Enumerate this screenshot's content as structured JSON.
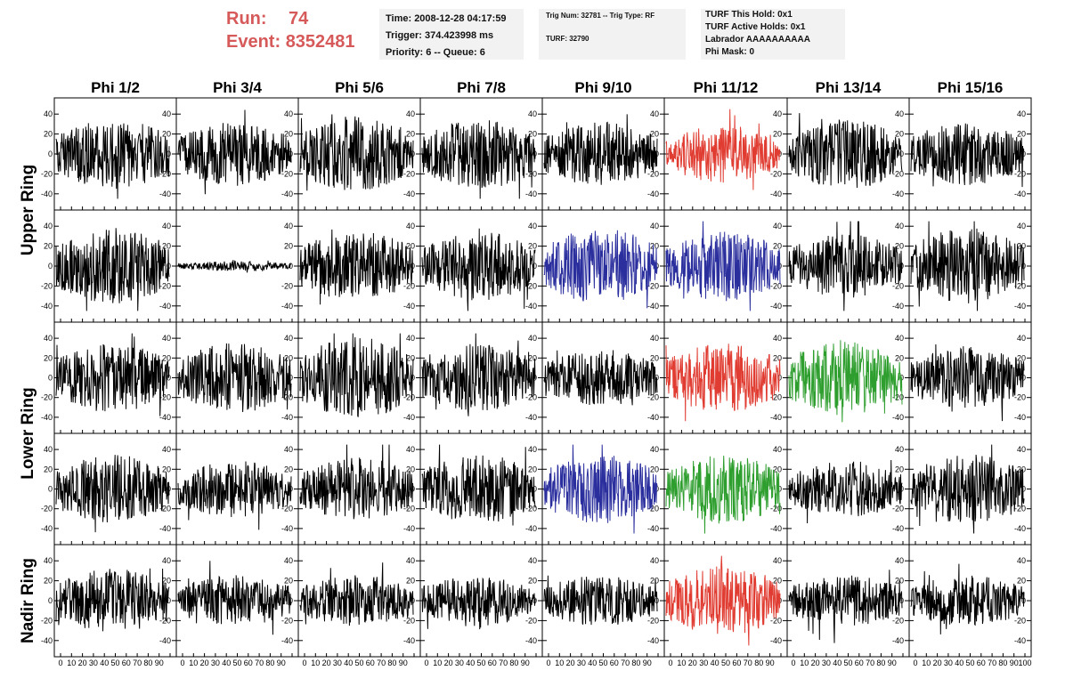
{
  "header": {
    "run_label": "Run:",
    "run_value": "74",
    "event_label": "Event:",
    "event_value": "8352481",
    "time": "Time: 2008-12-28 04:17:59",
    "trigger": "Trigger: 374.423998 ms",
    "priority": "Priority: 6 -- Queue: 6",
    "trig_num": "Trig Num: 32781 -- Trig Type: RF",
    "turf": "TURF: 32790",
    "turf_hold": "TURF This Hold: 0x1",
    "turf_active": "TURF Active Holds: 0x1",
    "labrador": "Labrador AAAAAAAAAA",
    "phi_mask": "Phi Mask: 0"
  },
  "colors": {
    "header_red": "#d65a5a",
    "info_bg": "#f2f2f2",
    "trace_black": "#000000",
    "trace_red": "#e03c31",
    "trace_blue": "#2b2f9e",
    "trace_green": "#2e9e2e"
  },
  "chart_data": {
    "type": "line",
    "columns": [
      "Phi 1/2",
      "Phi 3/4",
      "Phi 5/6",
      "Phi 7/8",
      "Phi 9/10",
      "Phi 11/12",
      "Phi 13/14",
      "Phi 15/16"
    ],
    "rows": [
      "Upper Ring",
      "Upper Ring",
      "Lower Ring",
      "Lower Ring",
      "Nadir Ring"
    ],
    "row_groups": [
      {
        "label": "Upper Ring",
        "rows": [
          0,
          1
        ]
      },
      {
        "label": "Lower Ring",
        "rows": [
          2,
          3
        ]
      },
      {
        "label": "Nadir Ring",
        "rows": [
          4
        ]
      }
    ],
    "xlim": [
      0,
      100
    ],
    "ylim": [
      -50,
      50
    ],
    "x_ticks": [
      "0",
      "10",
      "20",
      "30",
      "40",
      "50",
      "60",
      "70",
      "80",
      "90",
      "100"
    ],
    "y_ticks": [
      "40",
      "20",
      "0",
      "-20",
      "-40"
    ],
    "y_tick_values": [
      40,
      20,
      0,
      -20,
      -40
    ],
    "samples_per_trace": 260,
    "trace_colors": [
      [
        "black",
        "black",
        "black",
        "black",
        "black",
        "red",
        "black",
        "black"
      ],
      [
        "black",
        "black",
        "black",
        "black",
        "blue",
        "blue",
        "black",
        "black"
      ],
      [
        "black",
        "black",
        "black",
        "black",
        "black",
        "red",
        "green",
        "black"
      ],
      [
        "black",
        "black",
        "black",
        "black",
        "blue",
        "green",
        "black",
        "black"
      ],
      [
        "black",
        "black",
        "black",
        "black",
        "black",
        "red",
        "black",
        "black"
      ]
    ],
    "trace_amplitude": [
      [
        22,
        20,
        24,
        22,
        20,
        18,
        22,
        20
      ],
      [
        24,
        3,
        22,
        22,
        24,
        22,
        20,
        24
      ],
      [
        22,
        22,
        26,
        22,
        18,
        22,
        24,
        20
      ],
      [
        22,
        18,
        20,
        22,
        22,
        22,
        18,
        22
      ],
      [
        20,
        16,
        16,
        16,
        16,
        22,
        16,
        16
      ]
    ]
  }
}
